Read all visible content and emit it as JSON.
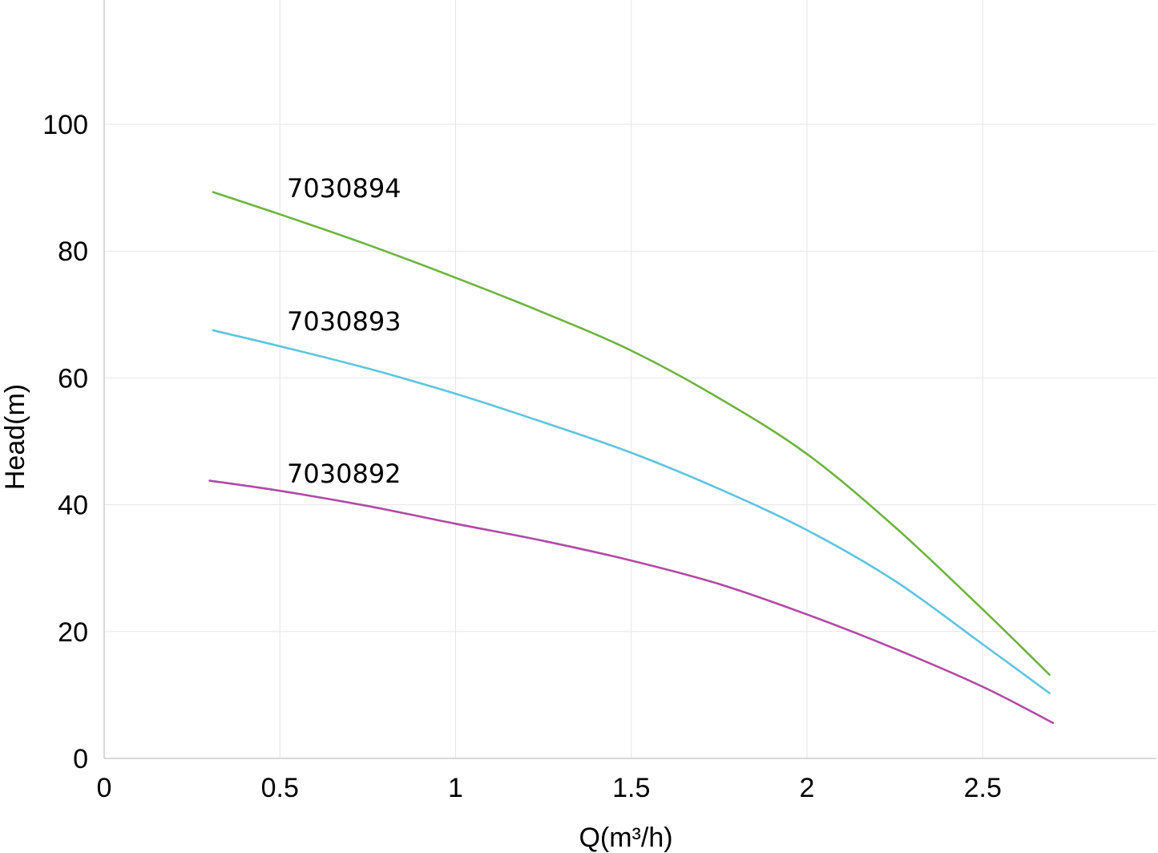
{
  "chart_data": {
    "type": "line",
    "xlabel": "Q(m³/h)",
    "ylabel": "Head(m)",
    "xlim": [
      0,
      3
    ],
    "ylim": [
      0,
      100
    ],
    "y_display_max": 119,
    "x_ticks": [
      0,
      0.5,
      1,
      1.5,
      2,
      2.5
    ],
    "x_tick_labels": [
      "0",
      "0.5",
      "1",
      "1.5",
      "2",
      "2.5"
    ],
    "y_ticks": [
      0,
      20,
      40,
      60,
      80,
      100
    ],
    "y_tick_labels": [
      "0",
      "20",
      "40",
      "60",
      "80",
      "100"
    ],
    "grid": true,
    "legend": "inline labels near curve starts",
    "series": [
      {
        "name": "7030894",
        "color": "#6db33f",
        "label_anchor": [
          0.52,
          89
        ],
        "x": [
          0.31,
          0.5,
          0.75,
          1.0,
          1.25,
          1.5,
          1.75,
          2.0,
          2.25,
          2.5,
          2.69
        ],
        "y": [
          89.3,
          85.8,
          81.0,
          75.8,
          70.3,
          64.3,
          56.8,
          48.0,
          36.5,
          23.5,
          13.2
        ]
      },
      {
        "name": "7030893",
        "color": "#5ec4df",
        "label_anchor": [
          0.52,
          68
        ],
        "x": [
          0.31,
          0.5,
          0.75,
          1.0,
          1.25,
          1.5,
          1.75,
          2.0,
          2.25,
          2.5,
          2.69
        ],
        "y": [
          67.5,
          65.0,
          61.5,
          57.5,
          53.0,
          48.2,
          42.5,
          36.0,
          28.0,
          18.0,
          10.3
        ]
      },
      {
        "name": "7030892",
        "color": "#b348a6",
        "label_anchor": [
          0.52,
          44
        ],
        "x": [
          0.3,
          0.5,
          0.75,
          1.0,
          1.25,
          1.5,
          1.75,
          2.0,
          2.25,
          2.5,
          2.7
        ],
        "y": [
          43.8,
          42.2,
          39.8,
          37.0,
          34.3,
          31.2,
          27.5,
          22.7,
          17.3,
          11.3,
          5.6
        ]
      }
    ]
  }
}
